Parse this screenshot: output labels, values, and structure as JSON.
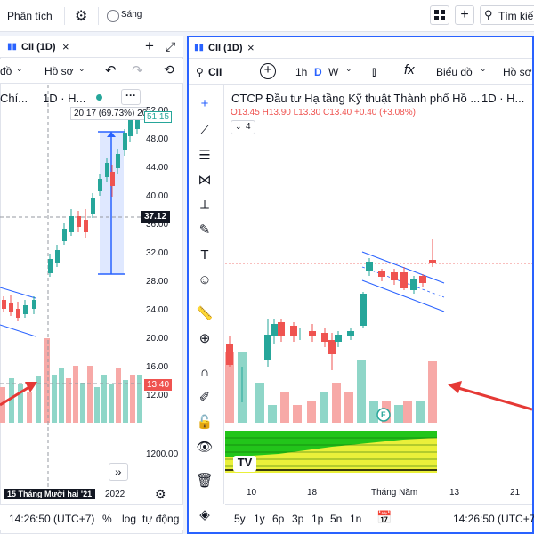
{
  "topbar": {
    "analysis_label": "Phân tích",
    "theme_label": "Sáng",
    "search_placeholder": "Tìm kiế"
  },
  "left_panel": {
    "tab_label": "CII (1D)",
    "toolbar": {
      "draw_label": "đồ",
      "profile_label": "Hồ sơ"
    },
    "legend": {
      "name": "Chí...",
      "interval": "1D · H..."
    },
    "measure_label": "20.17 (69.73%) 20",
    "price_axis": [
      "52.00",
      "48.00",
      "44.00",
      "40.00",
      "36.00",
      "32.00",
      "28.00",
      "24.00",
      "20.00",
      "16.00",
      "12.00"
    ],
    "last_price": "51.15",
    "crosshair_price": "37.12",
    "volume_label": "13.40",
    "lower_axis": "1200.00",
    "date_label": "15 Tháng Mười hai '21",
    "year_label": "2022",
    "time": "14:26:50 (UTC+7)",
    "bottom_buttons": [
      "%",
      "log",
      "tự động"
    ]
  },
  "right_panel": {
    "tab_label": "CII (1D)",
    "symbol": "CII",
    "intervals": [
      "1h",
      "D",
      "W"
    ],
    "chart_type_label": "Biểu đồ",
    "profile_label": "Hồ sơ",
    "title": "CTCP Đầu tư Hạ tầng Kỹ thuật Thành phố Hồ ...",
    "interval": "1D · H...",
    "ohlc": {
      "o": "O13.45",
      "h": "H13.90",
      "l": "L13.30",
      "c": "C13.40",
      "change": "+0.40 (+3.08%)"
    },
    "indicator_count": "4",
    "x_axis": [
      "10",
      "18",
      "Tháng Năm",
      "13",
      "21"
    ],
    "flag_label": "F",
    "time": "14:26:50 (UTC+7)",
    "ranges": [
      "5y",
      "1y",
      "6p",
      "3p",
      "1p",
      "5n",
      "1n"
    ]
  },
  "colors": {
    "up": "#26a69a",
    "down": "#ef5350",
    "accent": "#2962ff",
    "arrow": "#e53935"
  },
  "chart_data": [
    {
      "type": "candlestick",
      "title": "",
      "y_ticks": [
        52,
        48,
        44,
        40,
        36,
        32,
        28,
        24,
        20,
        16,
        12
      ],
      "ylim": [
        12,
        52
      ],
      "last_value": 51.15
    },
    {
      "type": "candlestick",
      "title": "CTCP Đầu tư Hạ tầng Kỹ thuật Thành phố Hồ ...",
      "x_ticks": [
        "10",
        "18",
        "Tháng Năm",
        "13",
        "21"
      ],
      "open": 13.45,
      "high": 13.9,
      "low": 13.3,
      "close": 13.4,
      "change": 0.4,
      "change_pct": 3.08
    }
  ]
}
